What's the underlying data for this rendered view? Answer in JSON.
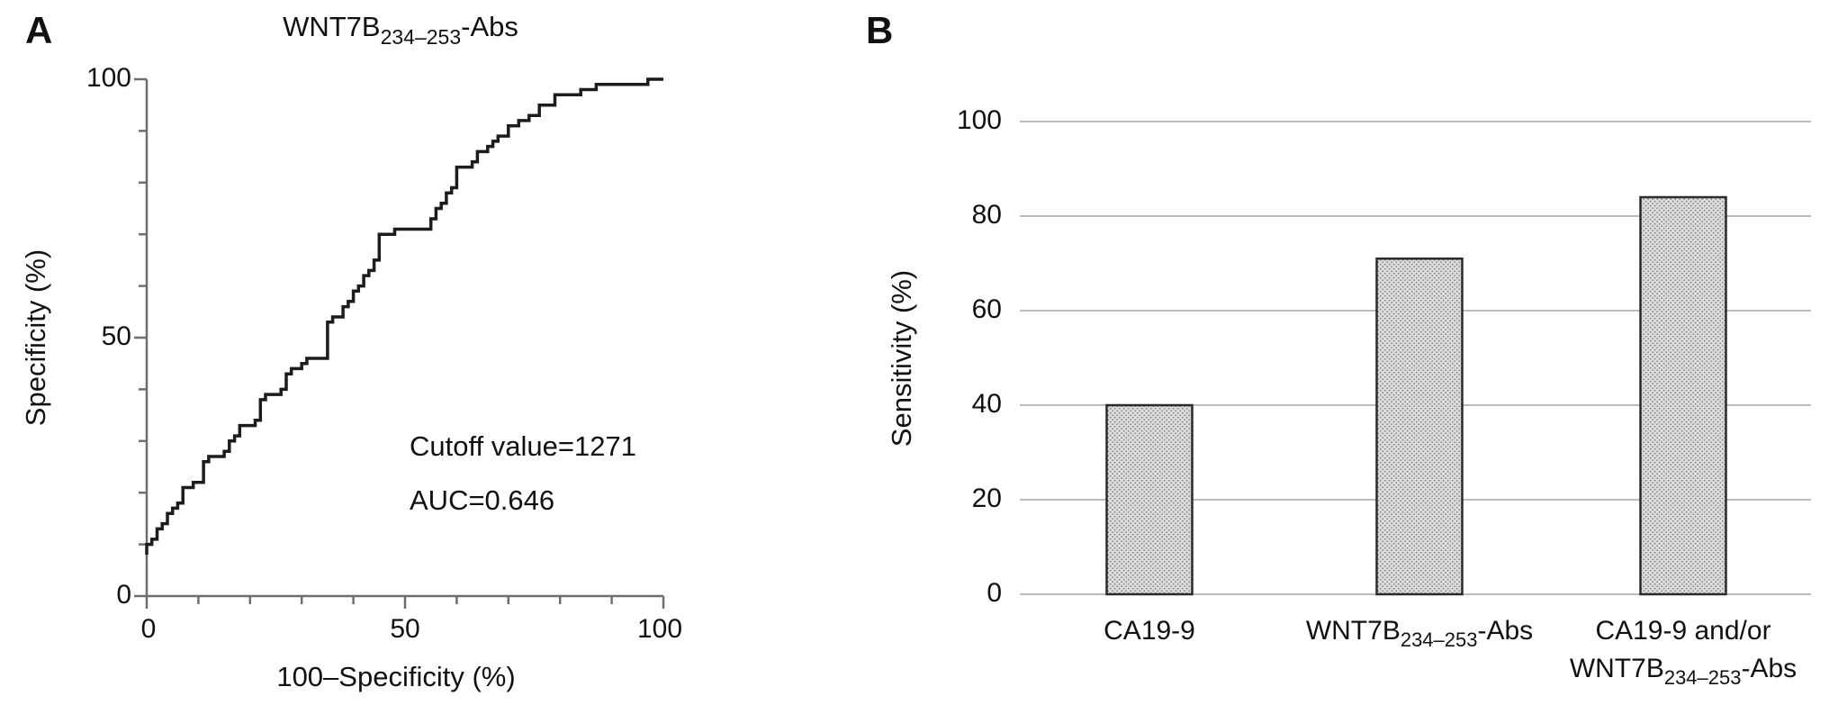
{
  "figure": {
    "panel_a": {
      "label": "A",
      "title": {
        "main": "WNT7B",
        "sub": "234–253",
        "suffix": "-Abs"
      },
      "y_axis": {
        "label": "Specificity (%)",
        "ticks": [
          "0",
          "50",
          "100"
        ]
      },
      "x_axis": {
        "label": "100–Specificity (%)",
        "ticks": [
          "0",
          "50",
          "100"
        ]
      },
      "annotations": {
        "cutoff": "Cutoff value=1271",
        "auc": "AUC=0.646"
      }
    },
    "panel_b": {
      "label": "B",
      "y_axis": {
        "label": "Sensitivity (%)",
        "ticks": [
          "0",
          "20",
          "40",
          "60",
          "80",
          "100"
        ]
      },
      "categories": {
        "cat1": "CA19-9",
        "cat2": {
          "main": "WNT7B",
          "sub": "234–253",
          "suffix": "-Abs"
        },
        "cat3_line1": "CA19-9 and/or",
        "cat3_line2": {
          "main": "WNT7B",
          "sub": "234–253",
          "suffix": "-Abs"
        }
      }
    }
  },
  "colors": {
    "curve": "#1c1c1c",
    "axis": "#6e6e6e",
    "gridline": "#bcbcbc",
    "bar_fill_base": "#dcdcdc",
    "bar_dot": "#7a7a7a",
    "bar_stroke": "#2b2b2b",
    "text": "#111111"
  },
  "chart_data": [
    {
      "type": "line",
      "subtype": "roc_step_curve",
      "panel": "A",
      "title": "WNT7B234–253-Abs",
      "xlabel": "100–Specificity (%)",
      "ylabel": "Specificity (%)",
      "xlim": [
        0,
        100
      ],
      "ylim": [
        0,
        100
      ],
      "x_major_ticks": [
        0,
        50,
        100
      ],
      "y_major_ticks": [
        0,
        50,
        100
      ],
      "minor_tick_step": 10,
      "grid": false,
      "annotations": [
        "Cutoff value=1271",
        "AUC=0.646"
      ],
      "points": [
        [
          0,
          8
        ],
        [
          0,
          10
        ],
        [
          1,
          10
        ],
        [
          1,
          11
        ],
        [
          2,
          11
        ],
        [
          2,
          13
        ],
        [
          3,
          13
        ],
        [
          3,
          14
        ],
        [
          4,
          14
        ],
        [
          4,
          16
        ],
        [
          5,
          16
        ],
        [
          5,
          17
        ],
        [
          6,
          17
        ],
        [
          6,
          18
        ],
        [
          7,
          18
        ],
        [
          7,
          21
        ],
        [
          9,
          21
        ],
        [
          9,
          22
        ],
        [
          11,
          22
        ],
        [
          11,
          26
        ],
        [
          12,
          26
        ],
        [
          12,
          27
        ],
        [
          15,
          27
        ],
        [
          15,
          28
        ],
        [
          16,
          28
        ],
        [
          16,
          30
        ],
        [
          17,
          30
        ],
        [
          17,
          31
        ],
        [
          18,
          31
        ],
        [
          18,
          33
        ],
        [
          21,
          33
        ],
        [
          21,
          34
        ],
        [
          22,
          34
        ],
        [
          22,
          38
        ],
        [
          23,
          38
        ],
        [
          23,
          39
        ],
        [
          26,
          39
        ],
        [
          26,
          40
        ],
        [
          27,
          40
        ],
        [
          27,
          43
        ],
        [
          28,
          43
        ],
        [
          28,
          44
        ],
        [
          30,
          44
        ],
        [
          30,
          45
        ],
        [
          31,
          45
        ],
        [
          31,
          46
        ],
        [
          35,
          46
        ],
        [
          35,
          53
        ],
        [
          36,
          53
        ],
        [
          36,
          54
        ],
        [
          38,
          54
        ],
        [
          38,
          56
        ],
        [
          39,
          56
        ],
        [
          39,
          57
        ],
        [
          40,
          57
        ],
        [
          40,
          59
        ],
        [
          41,
          59
        ],
        [
          41,
          60
        ],
        [
          42,
          60
        ],
        [
          42,
          62
        ],
        [
          43,
          62
        ],
        [
          43,
          63
        ],
        [
          44,
          63
        ],
        [
          44,
          65
        ],
        [
          45,
          65
        ],
        [
          45,
          70
        ],
        [
          48,
          70
        ],
        [
          48,
          71
        ],
        [
          55,
          71
        ],
        [
          55,
          73
        ],
        [
          56,
          73
        ],
        [
          56,
          75
        ],
        [
          57,
          75
        ],
        [
          57,
          76
        ],
        [
          58,
          76
        ],
        [
          58,
          78
        ],
        [
          59,
          78
        ],
        [
          59,
          79
        ],
        [
          60,
          79
        ],
        [
          60,
          83
        ],
        [
          63,
          83
        ],
        [
          63,
          84
        ],
        [
          64,
          84
        ],
        [
          64,
          86
        ],
        [
          66,
          86
        ],
        [
          66,
          87
        ],
        [
          67,
          87
        ],
        [
          67,
          88
        ],
        [
          68,
          88
        ],
        [
          68,
          89
        ],
        [
          70,
          89
        ],
        [
          70,
          91
        ],
        [
          72,
          91
        ],
        [
          72,
          92
        ],
        [
          74,
          92
        ],
        [
          74,
          93
        ],
        [
          76,
          93
        ],
        [
          76,
          95
        ],
        [
          79,
          95
        ],
        [
          79,
          97
        ],
        [
          84,
          97
        ],
        [
          84,
          98
        ],
        [
          87,
          98
        ],
        [
          87,
          99
        ],
        [
          97,
          99
        ],
        [
          97,
          100
        ],
        [
          100,
          100
        ]
      ]
    },
    {
      "type": "bar",
      "panel": "B",
      "ylabel": "Sensitivity (%)",
      "ylim": [
        0,
        100
      ],
      "y_ticks": [
        0,
        20,
        40,
        60,
        80,
        100
      ],
      "grid": true,
      "legend_position": "none",
      "categories": [
        "CA19-9",
        "WNT7B234–253-Abs",
        "CA19-9 and/or WNT7B234–253-Abs"
      ],
      "values": [
        40,
        71,
        84
      ]
    }
  ]
}
